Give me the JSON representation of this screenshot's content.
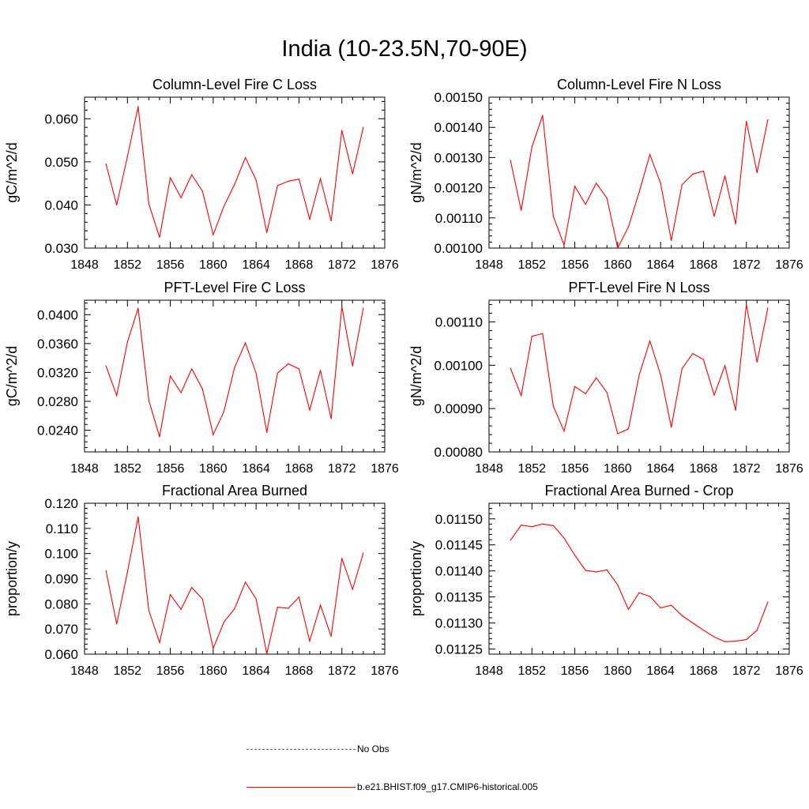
{
  "page": {
    "title": "India (10-23.5N,70-90E)"
  },
  "legend": [
    {
      "label": "No Obs",
      "color": "#5a5aaa",
      "style": "dashed"
    },
    {
      "label": "b.e21.BHIST.f09_g17.CMIP6-historical.005",
      "color": "#ff0000",
      "style": "solid"
    }
  ],
  "chart_data": [
    {
      "type": "line",
      "title": "Column-Level Fire C Loss",
      "ylabel": "gC/m^2/d",
      "xlim": [
        1848,
        1876
      ],
      "ylim": [
        0.03,
        0.065
      ],
      "yticks": [
        "0.030",
        "0.040",
        "0.050",
        "0.060"
      ],
      "ytick_values": [
        0.03,
        0.04,
        0.05,
        0.06
      ],
      "xticks": [
        "1848",
        "1852",
        "1856",
        "1860",
        "1864",
        "1868",
        "1872",
        "1876"
      ],
      "x": [
        1850,
        1851,
        1852,
        1853,
        1854,
        1855,
        1856,
        1857,
        1858,
        1859,
        1860,
        1861,
        1862,
        1863,
        1864,
        1865,
        1866,
        1867,
        1868,
        1869,
        1870,
        1871,
        1872,
        1873,
        1874
      ],
      "series": [
        {
          "name": "b.e21.BHIST.f09_g17.CMIP6-historical.005",
          "color": "#ff0000",
          "values": [
            0.0495,
            0.04,
            0.0512,
            0.0628,
            0.0402,
            0.0325,
            0.0463,
            0.0417,
            0.047,
            0.0432,
            0.0331,
            0.0397,
            0.0448,
            0.051,
            0.0458,
            0.0336,
            0.0445,
            0.0455,
            0.046,
            0.0367,
            0.0461,
            0.0363,
            0.0573,
            0.0472,
            0.058
          ]
        }
      ]
    },
    {
      "type": "line",
      "title": "Column-Level Fire N Loss",
      "ylabel": "gN/m^2/d",
      "xlim": [
        1848,
        1876
      ],
      "ylim": [
        0.001,
        0.0015
      ],
      "yticks": [
        "0.00100",
        "0.00110",
        "0.00120",
        "0.00130",
        "0.00140",
        "0.00150"
      ],
      "ytick_values": [
        0.001,
        0.0011,
        0.0012,
        0.0013,
        0.0014,
        0.0015
      ],
      "xticks": [
        "1848",
        "1852",
        "1856",
        "1860",
        "1864",
        "1868",
        "1872",
        "1876"
      ],
      "x": [
        1850,
        1851,
        1852,
        1853,
        1854,
        1855,
        1856,
        1857,
        1858,
        1859,
        1860,
        1861,
        1862,
        1863,
        1864,
        1865,
        1866,
        1867,
        1868,
        1869,
        1870,
        1871,
        1872,
        1873,
        1874
      ],
      "series": [
        {
          "name": "b.e21.BHIST.f09_g17.CMIP6-historical.005",
          "color": "#ff0000",
          "values": [
            0.00129,
            0.001125,
            0.001335,
            0.00144,
            0.001105,
            0.00101,
            0.001205,
            0.001145,
            0.001215,
            0.001165,
            0.001,
            0.00107,
            0.001185,
            0.00131,
            0.001215,
            0.001025,
            0.00121,
            0.001245,
            0.001255,
            0.001105,
            0.00124,
            0.00108,
            0.00142,
            0.00125,
            0.001425
          ]
        }
      ]
    },
    {
      "type": "line",
      "title": "PFT-Level Fire C Loss",
      "ylabel": "gC/m^2/d",
      "xlim": [
        1848,
        1876
      ],
      "ylim": [
        0.021,
        0.042
      ],
      "yticks": [
        "0.0240",
        "0.0280",
        "0.0320",
        "0.0360",
        "0.0400"
      ],
      "ytick_values": [
        0.024,
        0.028,
        0.032,
        0.036,
        0.04
      ],
      "xticks": [
        "1848",
        "1852",
        "1856",
        "1860",
        "1864",
        "1868",
        "1872",
        "1876"
      ],
      "x": [
        1850,
        1851,
        1852,
        1853,
        1854,
        1855,
        1856,
        1857,
        1858,
        1859,
        1860,
        1861,
        1862,
        1863,
        1864,
        1865,
        1866,
        1867,
        1868,
        1869,
        1870,
        1871,
        1872,
        1873,
        1874
      ],
      "series": [
        {
          "name": "b.e21.BHIST.f09_g17.CMIP6-historical.005",
          "color": "#ff0000",
          "values": [
            0.0329,
            0.0288,
            0.0362,
            0.0409,
            0.0281,
            0.0231,
            0.0315,
            0.0292,
            0.0325,
            0.0297,
            0.0234,
            0.0266,
            0.0327,
            0.0361,
            0.0319,
            0.0237,
            0.0319,
            0.0332,
            0.0325,
            0.0268,
            0.0323,
            0.0256,
            0.0411,
            0.0329,
            0.0409
          ]
        }
      ]
    },
    {
      "type": "line",
      "title": "PFT-Level Fire N Loss",
      "ylabel": "gN/m^2/d",
      "xlim": [
        1848,
        1876
      ],
      "ylim": [
        0.0008,
        0.00115
      ],
      "yticks": [
        "0.00080",
        "0.00090",
        "0.00100",
        "0.00110"
      ],
      "ytick_values": [
        0.0008,
        0.0009,
        0.001,
        0.0011
      ],
      "xticks": [
        "1848",
        "1852",
        "1856",
        "1860",
        "1864",
        "1868",
        "1872",
        "1876"
      ],
      "x": [
        1850,
        1851,
        1852,
        1853,
        1854,
        1855,
        1856,
        1857,
        1858,
        1859,
        1860,
        1861,
        1862,
        1863,
        1864,
        1865,
        1866,
        1867,
        1868,
        1869,
        1870,
        1871,
        1872,
        1873,
        1874
      ],
      "series": [
        {
          "name": "b.e21.BHIST.f09_g17.CMIP6-historical.005",
          "color": "#ff0000",
          "values": [
            0.000993,
            0.00093,
            0.001067,
            0.001073,
            0.000905,
            0.000848,
            0.000951,
            0.000934,
            0.000971,
            0.000937,
            0.000842,
            0.000853,
            0.000977,
            0.001056,
            0.000978,
            0.000857,
            0.000992,
            0.001027,
            0.001013,
            0.000931,
            0.000999,
            0.000896,
            0.00114,
            0.001007,
            0.001132
          ]
        }
      ]
    },
    {
      "type": "line",
      "title": "Fractional Area Burned",
      "ylabel": "proportion/y",
      "xlim": [
        1848,
        1876
      ],
      "ylim": [
        0.06,
        0.12
      ],
      "yticks": [
        "0.060",
        "0.070",
        "0.080",
        "0.090",
        "0.100",
        "0.110",
        "0.120"
      ],
      "ytick_values": [
        0.06,
        0.07,
        0.08,
        0.09,
        0.1,
        0.11,
        0.12
      ],
      "xticks": [
        "1848",
        "1852",
        "1856",
        "1860",
        "1864",
        "1868",
        "1872",
        "1876"
      ],
      "x": [
        1850,
        1851,
        1852,
        1853,
        1854,
        1855,
        1856,
        1857,
        1858,
        1859,
        1860,
        1861,
        1862,
        1863,
        1864,
        1865,
        1866,
        1867,
        1868,
        1869,
        1870,
        1871,
        1872,
        1873,
        1874
      ],
      "series": [
        {
          "name": "b.e21.BHIST.f09_g17.CMIP6-historical.005",
          "color": "#ff0000",
          "values": [
            0.0932,
            0.072,
            0.0926,
            0.1146,
            0.0773,
            0.0646,
            0.0837,
            0.0778,
            0.0865,
            0.0819,
            0.0623,
            0.0727,
            0.0781,
            0.0886,
            0.082,
            0.0601,
            0.0787,
            0.0782,
            0.0827,
            0.0652,
            0.0795,
            0.0671,
            0.0981,
            0.0858,
            0.1002
          ]
        }
      ]
    },
    {
      "type": "line",
      "title": "Fractional Area Burned - Crop",
      "ylabel": "proportion/y",
      "xlim": [
        1848,
        1876
      ],
      "ylim": [
        0.01124,
        0.01153
      ],
      "yticks": [
        "0.01125",
        "0.01130",
        "0.01135",
        "0.01140",
        "0.01145",
        "0.01150"
      ],
      "ytick_values": [
        0.01125,
        0.0113,
        0.01135,
        0.0114,
        0.01145,
        0.0115
      ],
      "xticks": [
        "1848",
        "1852",
        "1856",
        "1860",
        "1864",
        "1868",
        "1872",
        "1876"
      ],
      "x": [
        1850,
        1851,
        1852,
        1853,
        1854,
        1855,
        1856,
        1857,
        1858,
        1859,
        1860,
        1861,
        1862,
        1863,
        1864,
        1865,
        1866,
        1867,
        1868,
        1869,
        1870,
        1871,
        1872,
        1873,
        1874
      ],
      "series": [
        {
          "name": "b.e21.BHIST.f09_g17.CMIP6-historical.005",
          "color": "#ff0000",
          "values": [
            0.011459,
            0.011488,
            0.011485,
            0.01149,
            0.011487,
            0.011463,
            0.01143,
            0.011401,
            0.011398,
            0.011402,
            0.011373,
            0.011326,
            0.011358,
            0.011351,
            0.011329,
            0.011334,
            0.011314,
            0.0113,
            0.011286,
            0.011273,
            0.011264,
            0.011265,
            0.011268,
            0.011286,
            0.01134
          ]
        }
      ]
    }
  ]
}
